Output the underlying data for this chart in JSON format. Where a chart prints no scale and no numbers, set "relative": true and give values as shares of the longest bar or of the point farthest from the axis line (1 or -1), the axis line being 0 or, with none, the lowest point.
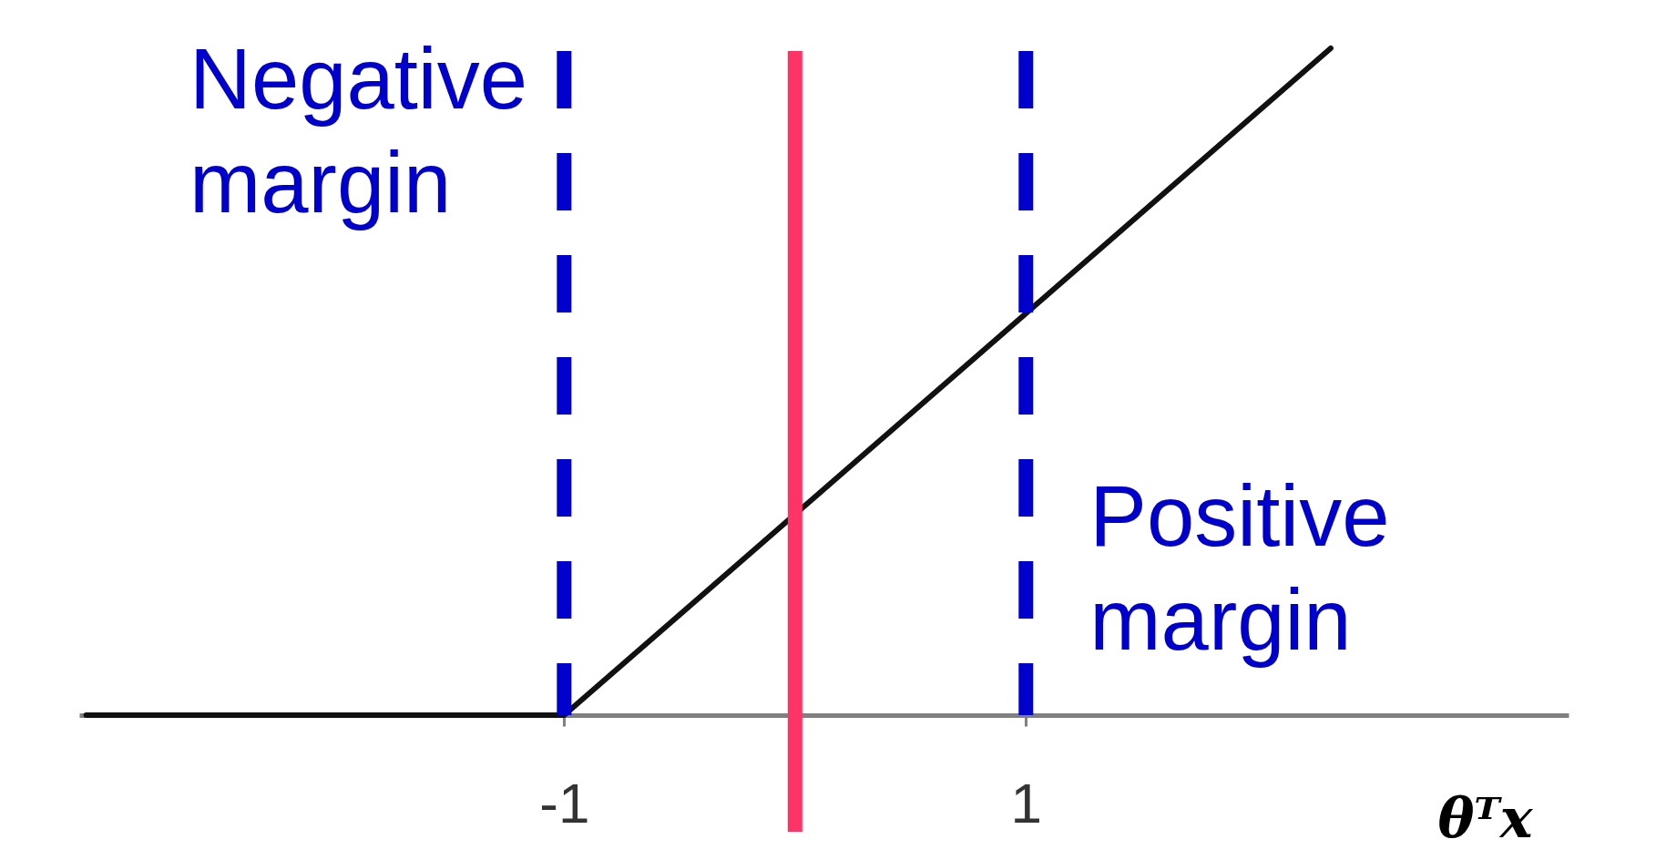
{
  "chart_data": {
    "type": "line",
    "relative": true,
    "x": [
      -3.07,
      -1,
      2.32
    ],
    "values": [
      0,
      0,
      1
    ],
    "color": "#111111",
    "xlim": [
      -3.1,
      3.35
    ],
    "xticks": [
      {
        "value": -1,
        "label": "-1"
      },
      1
    ],
    "xlabel": "θᵀx",
    "ref_lines": [
      {
        "axis": "x",
        "value": -1,
        "label": "Negative margin",
        "color": "#0000cc",
        "line_style": "dashed"
      },
      {
        "axis": "x",
        "value": 1,
        "label": "Positive margin",
        "color": "#0000cc",
        "line_style": "dashed"
      },
      {
        "axis": "x",
        "value": 0,
        "color": "#ff3366",
        "line_style": "solid"
      }
    ]
  }
}
